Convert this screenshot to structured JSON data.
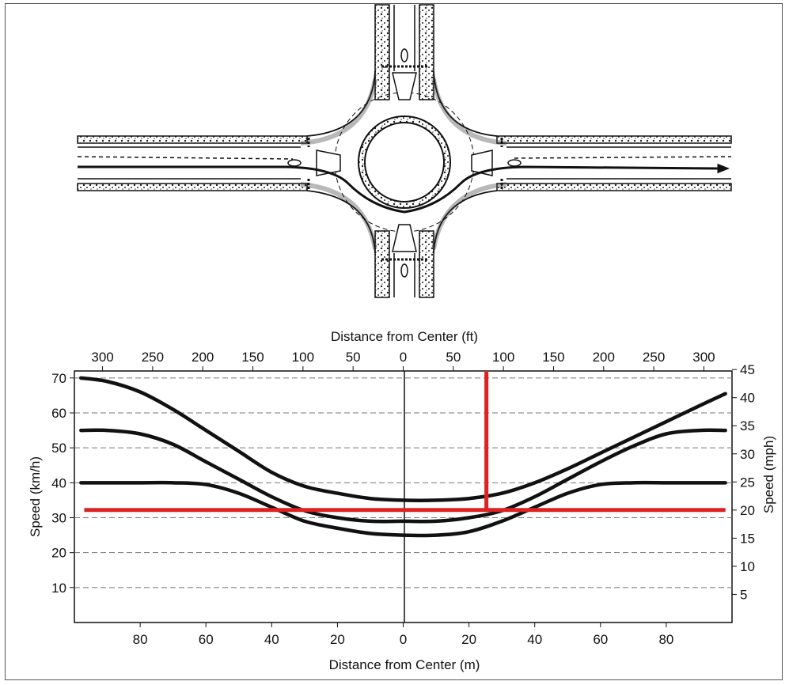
{
  "chart_data": {
    "type": "line",
    "xlabel_top": "Distance from Center (ft)",
    "xlabel_bottom": "Distance from Center (m)",
    "ylabel_left": "Speed (km/h)",
    "ylabel_right": "Speed (mph)",
    "xlim_m": [
      -100,
      100
    ],
    "ylim_kmh": [
      0,
      72
    ],
    "top_ticks_ft": [
      -300,
      -250,
      -200,
      -150,
      -100,
      -50,
      0,
      50,
      100,
      150,
      200,
      250,
      300
    ],
    "top_tick_labels": [
      "300",
      "250",
      "200",
      "150",
      "100",
      "50",
      "0",
      "50",
      "100",
      "150",
      "200",
      "250",
      "300"
    ],
    "bottom_ticks_m": [
      -80,
      -60,
      -40,
      -20,
      0,
      20,
      40,
      60,
      80
    ],
    "bottom_tick_labels": [
      "80",
      "60",
      "40",
      "20",
      "0",
      "20",
      "40",
      "60",
      "80"
    ],
    "left_ticks_kmh": [
      10,
      20,
      30,
      40,
      50,
      60,
      70
    ],
    "right_ticks_mph": [
      5,
      10,
      15,
      20,
      25,
      30,
      35,
      40,
      45
    ],
    "grid": "horizontal dashed",
    "series": [
      {
        "x": [
          -98,
          -90,
          -80,
          -70,
          -60,
          -50,
          -40,
          -30,
          -20,
          -10,
          0,
          10,
          20,
          30,
          40,
          50,
          60,
          70,
          80,
          90,
          98
        ],
        "y": [
          70,
          69,
          66,
          61,
          55,
          49,
          43,
          39,
          37,
          35.5,
          35,
          35,
          35.5,
          37,
          40,
          44,
          48.5,
          53,
          57.5,
          62,
          65.5
        ],
        "color": "#111111"
      },
      {
        "x": [
          -98,
          -90,
          -80,
          -70,
          -60,
          -50,
          -40,
          -30,
          -20,
          -10,
          0,
          10,
          20,
          30,
          40,
          50,
          60,
          70,
          80,
          90,
          98
        ],
        "y": [
          55,
          55,
          54,
          51,
          46,
          41,
          36,
          32,
          30,
          29,
          29,
          29,
          30,
          32,
          36,
          41,
          46,
          50.5,
          54,
          55,
          55
        ],
        "color": "#111111"
      },
      {
        "x": [
          -98,
          -90,
          -80,
          -70,
          -60,
          -50,
          -40,
          -30,
          -20,
          -10,
          0,
          10,
          20,
          30,
          40,
          50,
          60,
          70,
          80,
          90,
          98
        ],
        "y": [
          40,
          40,
          40,
          40,
          39.5,
          37,
          33,
          29,
          27,
          25.5,
          25,
          25,
          26,
          29,
          33,
          37,
          39.5,
          40,
          40,
          40,
          40
        ],
        "color": "#111111"
      }
    ],
    "annotations": {
      "color": "#dd2222",
      "horizontal_line": {
        "y_kmh": 32.2,
        "x_range_m": [
          -97,
          98
        ]
      },
      "vertical_line": {
        "x_m": 25.3,
        "y_range_kmh": [
          32.2,
          72
        ]
      }
    }
  }
}
